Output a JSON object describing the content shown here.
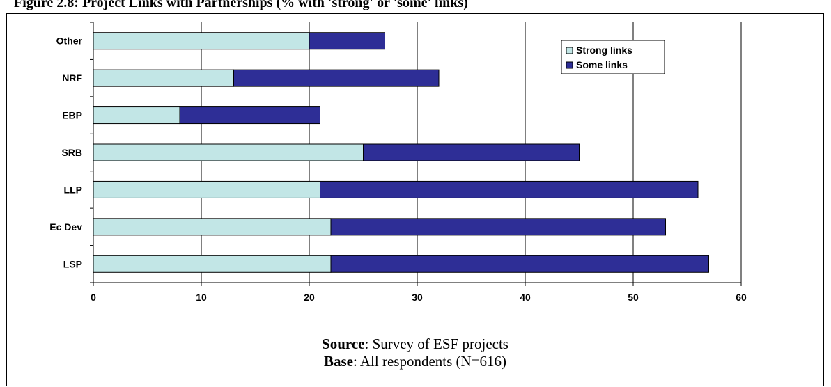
{
  "figure": {
    "title": "Figure 2.8: Project Links with Partnerships (% with 'strong' or 'some' links)"
  },
  "chart_data": {
    "type": "bar",
    "orientation": "horizontal",
    "stacked": true,
    "categories": [
      "Other",
      "NRF",
      "EBP",
      "SRB",
      "LLP",
      "Ec Dev",
      "LSP"
    ],
    "series": [
      {
        "name": "Strong links",
        "color": "#c2e6e6",
        "values": [
          20,
          13,
          8,
          25,
          21,
          22,
          22
        ]
      },
      {
        "name": "Some links",
        "color": "#2e2e96",
        "values": [
          7,
          19,
          13,
          20,
          35,
          31,
          35
        ]
      }
    ],
    "xlim": [
      0,
      60
    ],
    "xticks": [
      0,
      10,
      20,
      30,
      40,
      50,
      60
    ],
    "grid": "vertical",
    "legend_position": "top-right"
  },
  "caption": {
    "source_label": "Source",
    "source_text": ": Survey of ESF projects",
    "base_label": "Base",
    "base_text": ": All respondents (N=616)"
  }
}
